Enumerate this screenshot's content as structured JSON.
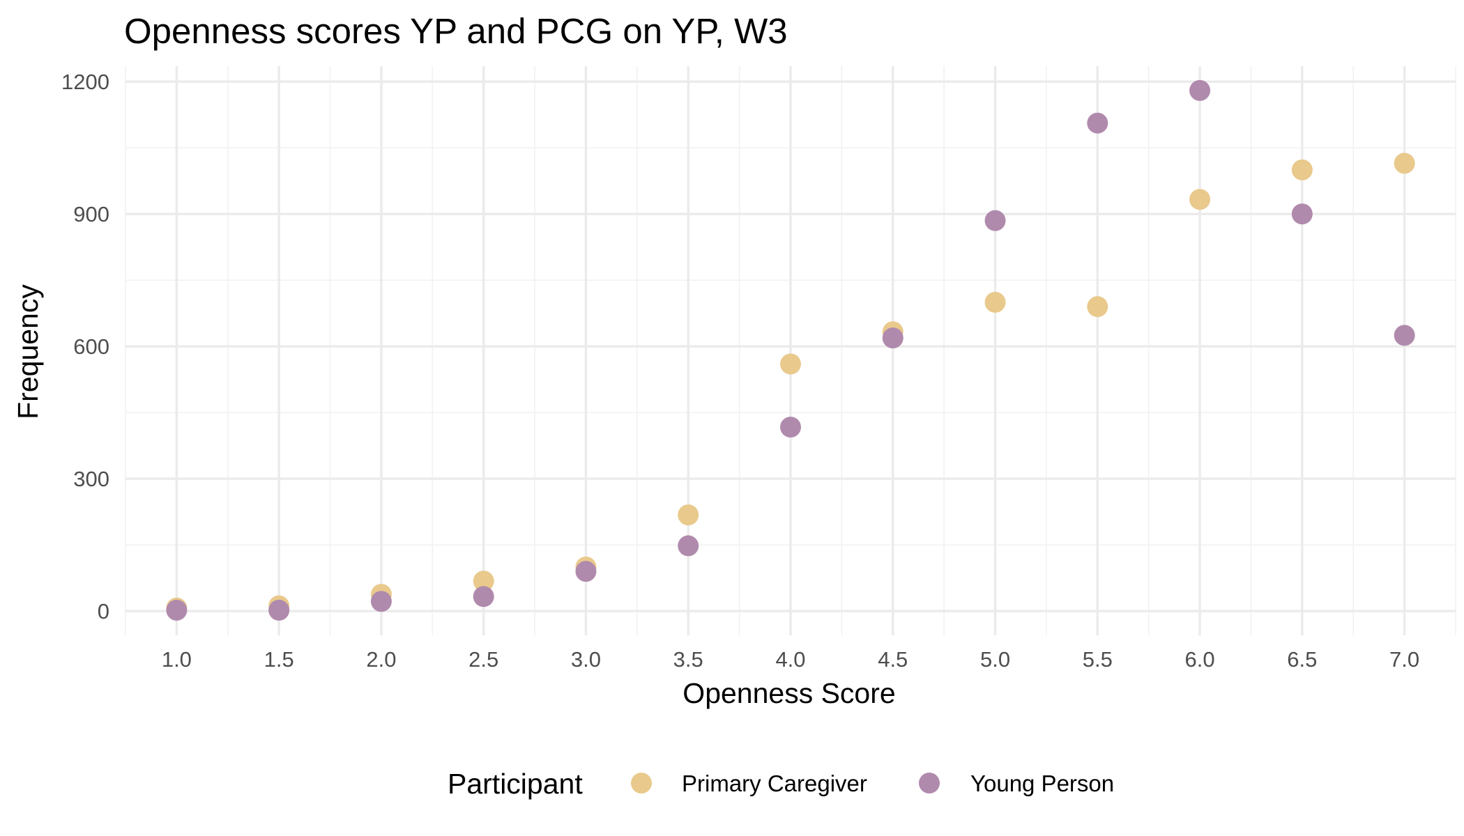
{
  "chart_data": {
    "type": "scatter",
    "title": "Openness scores YP and PCG on YP, W3",
    "xlabel": "Openness Score",
    "ylabel": "Frequency",
    "xlim": [
      0.75,
      7.25
    ],
    "ylim": [
      -55,
      1235
    ],
    "x_ticks": [
      1.0,
      1.5,
      2.0,
      2.5,
      3.0,
      3.5,
      4.0,
      4.5,
      5.0,
      5.5,
      6.0,
      6.5,
      7.0
    ],
    "x_tick_labels": [
      "1.0",
      "1.5",
      "2.0",
      "2.5",
      "3.0",
      "3.5",
      "4.0",
      "4.5",
      "5.0",
      "5.5",
      "6.0",
      "6.5",
      "7.0"
    ],
    "y_ticks": [
      0,
      300,
      600,
      900,
      1200
    ],
    "y_tick_labels": [
      "0",
      "300",
      "600",
      "900",
      "1200"
    ],
    "grid": true,
    "legend": {
      "title": "Participant",
      "position": "bottom"
    },
    "x": [
      1.0,
      1.5,
      2.0,
      2.5,
      3.0,
      3.5,
      4.0,
      4.5,
      5.0,
      5.5,
      6.0,
      6.5,
      7.0
    ],
    "series": [
      {
        "name": "Primary Caregiver",
        "color": "#e9c98c",
        "values": [
          7,
          12,
          38,
          68,
          100,
          218,
          560,
          633,
          700,
          690,
          933,
          1000,
          1015
        ]
      },
      {
        "name": "Young Person",
        "color": "#b08aad",
        "values": [
          2,
          2,
          22,
          33,
          90,
          148,
          417,
          619,
          885,
          1106,
          1180,
          900,
          625
        ]
      }
    ]
  }
}
